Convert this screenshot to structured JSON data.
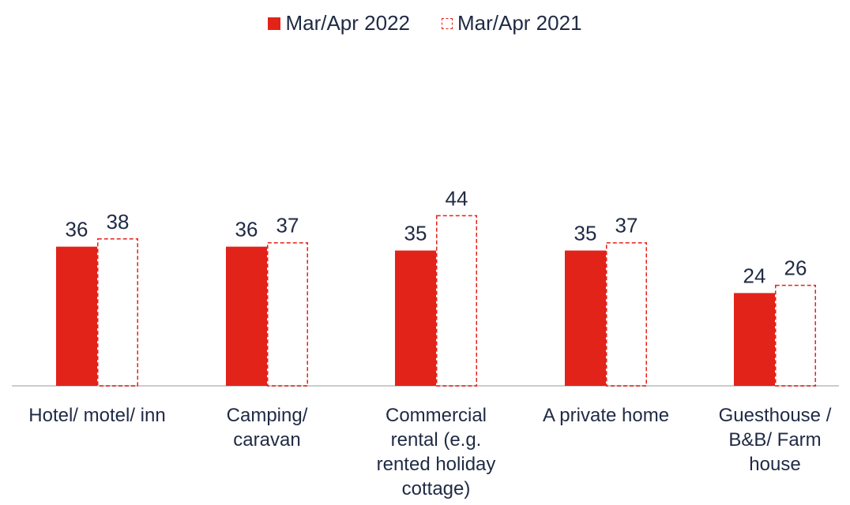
{
  "chart_data": {
    "type": "bar",
    "categories": [
      [
        "Hotel/ motel/ inn"
      ],
      [
        "Camping/",
        "caravan"
      ],
      [
        "Commercial",
        "rental (e.g.",
        "rented holiday",
        "cottage)"
      ],
      [
        "A private home"
      ],
      [
        "Guesthouse /",
        "B&B/ Farm",
        "house"
      ]
    ],
    "series": [
      {
        "name": "Mar/Apr 2022",
        "values": [
          36,
          36,
          35,
          35,
          24
        ],
        "style": "solid",
        "color": "#e2231a"
      },
      {
        "name": "Mar/Apr 2021",
        "values": [
          38,
          37,
          44,
          37,
          26
        ],
        "style": "dashed",
        "color": "#e2231a"
      }
    ],
    "ylim": [
      0,
      50
    ],
    "legend": "top-center",
    "grid": false
  }
}
